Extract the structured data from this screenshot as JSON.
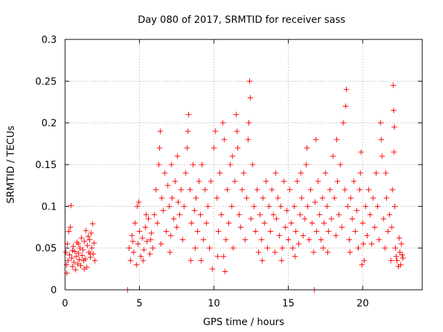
{
  "chart_data": {
    "type": "scatter",
    "title": "Day 080 of 2017, SRMTID for receiver sass",
    "xlabel": "GPS time / hours",
    "ylabel": "SRMTID / TECUs",
    "xlim": [
      0,
      24
    ],
    "ylim": [
      0,
      0.3
    ],
    "xticks": [
      0,
      5,
      10,
      15,
      20
    ],
    "xtick_labels": [
      "0",
      "5",
      "10",
      "15",
      "20"
    ],
    "yticks": [
      0,
      0.05,
      0.1,
      0.15,
      0.2,
      0.25,
      0.3
    ],
    "ytick_labels": [
      "0",
      "0.05",
      "0.1",
      "0.15",
      "0.2",
      "0.25",
      "0.3"
    ],
    "grid": true,
    "marker": "plus",
    "marker_color": "#ff0000",
    "series": [
      {
        "name": "SRMTID",
        "points": [
          [
            0.05,
            0.045
          ],
          [
            0.1,
            0.03
          ],
          [
            0.15,
            0.055
          ],
          [
            0.2,
            0.035
          ],
          [
            0.25,
            0.07
          ],
          [
            0.3,
            0.042
          ],
          [
            0.35,
            0.075
          ],
          [
            0.4,
            0.101
          ],
          [
            0.45,
            0.038
          ],
          [
            0.5,
            0.028
          ],
          [
            0.55,
            0.052
          ],
          [
            0.6,
            0.033
          ],
          [
            0.65,
            0.046
          ],
          [
            0.7,
            0.024
          ],
          [
            0.75,
            0.04
          ],
          [
            0.8,
            0.057
          ],
          [
            0.85,
            0.031
          ],
          [
            0.9,
            0.044
          ],
          [
            0.95,
            0.036
          ],
          [
            1.0,
            0.05
          ],
          [
            1.05,
            0.029
          ],
          [
            1.1,
            0.062
          ],
          [
            1.15,
            0.041
          ],
          [
            1.2,
            0.048
          ],
          [
            1.25,
            0.035
          ],
          [
            1.3,
            0.058
          ],
          [
            1.35,
            0.037
          ],
          [
            1.4,
            0.071
          ],
          [
            1.45,
            0.027
          ],
          [
            1.5,
            0.053
          ],
          [
            1.55,
            0.064
          ],
          [
            1.6,
            0.045
          ],
          [
            1.65,
            0.06
          ],
          [
            1.7,
            0.039
          ],
          [
            1.75,
            0.068
          ],
          [
            1.8,
            0.05
          ],
          [
            1.85,
            0.079
          ],
          [
            1.9,
            0.043
          ],
          [
            1.95,
            0.056
          ],
          [
            2.0,
            0.035
          ],
          [
            0.12,
            0.02
          ],
          [
            0.5,
            0.047
          ],
          [
            1.3,
            0.025
          ],
          [
            1.7,
            0.043
          ],
          [
            0.9,
            0.055
          ],
          [
            4.2,
            0.0
          ],
          [
            4.3,
            0.05
          ],
          [
            4.4,
            0.035
          ],
          [
            4.5,
            0.065
          ],
          [
            4.6,
            0.045
          ],
          [
            4.7,
            0.08
          ],
          [
            4.8,
            0.03
          ],
          [
            4.85,
            0.1
          ],
          [
            4.9,
            0.055
          ],
          [
            5.0,
            0.07
          ],
          [
            5.1,
            0.04
          ],
          [
            5.2,
            0.062
          ],
          [
            5.3,
            0.048
          ],
          [
            5.4,
            0.075
          ],
          [
            5.5,
            0.058
          ],
          [
            5.6,
            0.085
          ],
          [
            5.7,
            0.043
          ],
          [
            5.8,
            0.068
          ],
          [
            5.9,
            0.05
          ],
          [
            6.0,
            0.09
          ],
          [
            4.95,
            0.105
          ],
          [
            5.25,
            0.035
          ],
          [
            5.75,
            0.06
          ],
          [
            4.55,
            0.058
          ],
          [
            5.45,
            0.09
          ],
          [
            6.1,
            0.12
          ],
          [
            6.2,
            0.08
          ],
          [
            6.3,
            0.15
          ],
          [
            6.4,
            0.19
          ],
          [
            6.5,
            0.11
          ],
          [
            6.6,
            0.095
          ],
          [
            6.7,
            0.14
          ],
          [
            6.8,
            0.07
          ],
          [
            6.9,
            0.125
          ],
          [
            7.0,
            0.1
          ],
          [
            7.1,
            0.065
          ],
          [
            7.2,
            0.11
          ],
          [
            7.3,
            0.085
          ],
          [
            7.4,
            0.13
          ],
          [
            7.5,
            0.075
          ],
          [
            7.6,
            0.105
          ],
          [
            7.7,
            0.09
          ],
          [
            7.8,
            0.12
          ],
          [
            7.9,
            0.06
          ],
          [
            8.0,
            0.1
          ],
          [
            8.1,
            0.14
          ],
          [
            8.2,
            0.17
          ],
          [
            8.3,
            0.21
          ],
          [
            8.4,
            0.12
          ],
          [
            8.5,
            0.08
          ],
          [
            8.6,
            0.15
          ],
          [
            8.7,
            0.095
          ],
          [
            8.8,
            0.11
          ],
          [
            8.9,
            0.07
          ],
          [
            9.0,
            0.13
          ],
          [
            6.35,
            0.17
          ],
          [
            6.45,
            0.055
          ],
          [
            7.05,
            0.045
          ],
          [
            7.55,
            0.16
          ],
          [
            8.25,
            0.19
          ],
          [
            8.75,
            0.05
          ],
          [
            8.45,
            0.035
          ],
          [
            7.15,
            0.15
          ],
          [
            9.1,
            0.09
          ],
          [
            9.2,
            0.15
          ],
          [
            9.3,
            0.06
          ],
          [
            9.4,
            0.12
          ],
          [
            9.5,
            0.08
          ],
          [
            9.6,
            0.1
          ],
          [
            9.7,
            0.05
          ],
          [
            9.8,
            0.13
          ],
          [
            9.9,
            0.025
          ],
          [
            10.0,
            0.17
          ],
          [
            10.1,
            0.19
          ],
          [
            10.2,
            0.11
          ],
          [
            10.3,
            0.07
          ],
          [
            10.4,
            0.14
          ],
          [
            10.5,
            0.09
          ],
          [
            10.6,
            0.2
          ],
          [
            10.7,
            0.18
          ],
          [
            10.8,
            0.06
          ],
          [
            10.9,
            0.12
          ],
          [
            11.0,
            0.08
          ],
          [
            11.1,
            0.15
          ],
          [
            11.2,
            0.1
          ],
          [
            11.3,
            0.05
          ],
          [
            11.4,
            0.13
          ],
          [
            11.5,
            0.21
          ],
          [
            11.6,
            0.17
          ],
          [
            11.7,
            0.09
          ],
          [
            11.8,
            0.075
          ],
          [
            11.9,
            0.12
          ],
          [
            12.0,
            0.14
          ],
          [
            12.1,
            0.06
          ],
          [
            12.2,
            0.11
          ],
          [
            12.3,
            0.18
          ],
          [
            12.4,
            0.25
          ],
          [
            12.5,
            0.085
          ],
          [
            12.6,
            0.15
          ],
          [
            12.7,
            0.1
          ],
          [
            12.8,
            0.07
          ],
          [
            12.9,
            0.12
          ],
          [
            13.0,
            0.045
          ],
          [
            9.15,
            0.035
          ],
          [
            10.25,
            0.04
          ],
          [
            10.75,
            0.022
          ],
          [
            11.25,
            0.16
          ],
          [
            12.45,
            0.23
          ],
          [
            12.35,
            0.2
          ],
          [
            11.55,
            0.19
          ],
          [
            10.65,
            0.04
          ],
          [
            13.1,
            0.09
          ],
          [
            13.2,
            0.06
          ],
          [
            13.3,
            0.11
          ],
          [
            13.4,
            0.08
          ],
          [
            13.5,
            0.13
          ],
          [
            13.6,
            0.05
          ],
          [
            13.7,
            0.1
          ],
          [
            13.8,
            0.07
          ],
          [
            13.9,
            0.12
          ],
          [
            14.0,
            0.09
          ],
          [
            14.1,
            0.045
          ],
          [
            14.2,
            0.085
          ],
          [
            14.3,
            0.11
          ],
          [
            14.4,
            0.065
          ],
          [
            14.5,
            0.1
          ],
          [
            14.6,
            0.05
          ],
          [
            14.7,
            0.13
          ],
          [
            14.8,
            0.075
          ],
          [
            14.9,
            0.095
          ],
          [
            15.0,
            0.06
          ],
          [
            15.1,
            0.12
          ],
          [
            15.2,
            0.08
          ],
          [
            15.3,
            0.05
          ],
          [
            15.4,
            0.1
          ],
          [
            15.5,
            0.07
          ],
          [
            15.6,
            0.13
          ],
          [
            15.7,
            0.055
          ],
          [
            15.8,
            0.09
          ],
          [
            15.9,
            0.11
          ],
          [
            16.0,
            0.065
          ],
          [
            16.1,
            0.085
          ],
          [
            16.2,
            0.15
          ],
          [
            16.3,
            0.1
          ],
          [
            16.4,
            0.06
          ],
          [
            16.5,
            0.12
          ],
          [
            16.6,
            0.08
          ],
          [
            16.7,
            0.045
          ],
          [
            16.8,
            0.105
          ],
          [
            16.9,
            0.07
          ],
          [
            17.0,
            0.13
          ],
          [
            13.25,
            0.035
          ],
          [
            14.15,
            0.14
          ],
          [
            15.45,
            0.04
          ],
          [
            16.25,
            0.17
          ],
          [
            16.85,
            0.18
          ],
          [
            16.75,
            0.0
          ],
          [
            15.85,
            0.14
          ],
          [
            14.55,
            0.035
          ],
          [
            17.1,
            0.09
          ],
          [
            17.2,
            0.06
          ],
          [
            17.3,
            0.11
          ],
          [
            17.4,
            0.08
          ],
          [
            17.5,
            0.14
          ],
          [
            17.6,
            0.1
          ],
          [
            17.7,
            0.07
          ],
          [
            17.8,
            0.12
          ],
          [
            17.9,
            0.085
          ],
          [
            18.0,
            0.16
          ],
          [
            18.1,
            0.11
          ],
          [
            18.2,
            0.065
          ],
          [
            18.3,
            0.13
          ],
          [
            18.4,
            0.09
          ],
          [
            18.5,
            0.15
          ],
          [
            18.6,
            0.075
          ],
          [
            18.7,
            0.2
          ],
          [
            18.8,
            0.12
          ],
          [
            18.9,
            0.24
          ],
          [
            19.0,
            0.1
          ],
          [
            19.1,
            0.06
          ],
          [
            19.2,
            0.11
          ],
          [
            19.3,
            0.085
          ],
          [
            19.4,
            0.13
          ],
          [
            19.5,
            0.07
          ],
          [
            19.6,
            0.095
          ],
          [
            19.7,
            0.05
          ],
          [
            19.8,
            0.12
          ],
          [
            19.9,
            0.165
          ],
          [
            20.0,
            0.08
          ],
          [
            20.1,
            0.035
          ],
          [
            20.2,
            0.1
          ],
          [
            20.3,
            0.065
          ],
          [
            20.4,
            0.12
          ],
          [
            20.5,
            0.09
          ],
          [
            20.6,
            0.055
          ],
          [
            20.7,
            0.11
          ],
          [
            20.8,
            0.075
          ],
          [
            20.9,
            0.14
          ],
          [
            21.0,
            0.1
          ],
          [
            17.65,
            0.045
          ],
          [
            18.25,
            0.18
          ],
          [
            18.85,
            0.22
          ],
          [
            19.15,
            0.045
          ],
          [
            19.95,
            0.03
          ],
          [
            20.05,
            0.055
          ],
          [
            19.85,
            0.14
          ],
          [
            17.35,
            0.05
          ],
          [
            21.1,
            0.06
          ],
          [
            21.2,
            0.2
          ],
          [
            21.3,
            0.16
          ],
          [
            21.4,
            0.085
          ],
          [
            21.5,
            0.05
          ],
          [
            21.6,
            0.11
          ],
          [
            21.7,
            0.07
          ],
          [
            21.8,
            0.09
          ],
          [
            21.9,
            0.035
          ],
          [
            22.0,
            0.12
          ],
          [
            22.05,
            0.245
          ],
          [
            22.08,
            0.215
          ],
          [
            22.1,
            0.165
          ],
          [
            22.15,
            0.1
          ],
          [
            22.2,
            0.05
          ],
          [
            22.3,
            0.035
          ],
          [
            22.4,
            0.028
          ],
          [
            22.5,
            0.045
          ],
          [
            22.6,
            0.055
          ],
          [
            22.7,
            0.038
          ],
          [
            21.25,
            0.18
          ],
          [
            21.55,
            0.14
          ],
          [
            21.95,
            0.075
          ],
          [
            22.12,
            0.195
          ],
          [
            22.25,
            0.04
          ],
          [
            22.45,
            0.062
          ],
          [
            22.55,
            0.03
          ],
          [
            22.65,
            0.042
          ]
        ]
      }
    ]
  }
}
